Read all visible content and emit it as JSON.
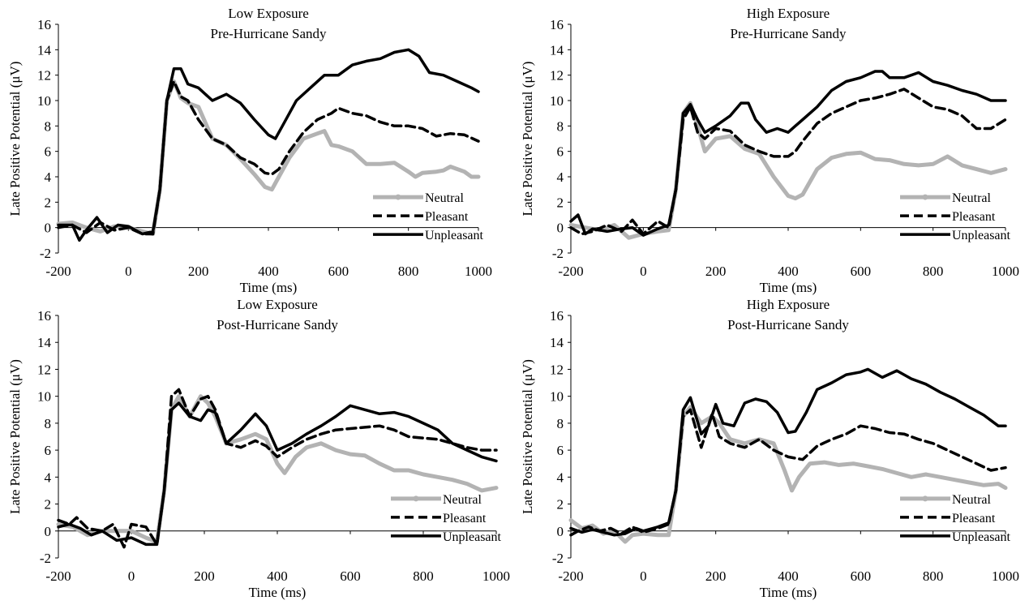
{
  "chart_data": [
    {
      "type": "line",
      "title": "Low Exposure",
      "subtitle": "Pre-Hurricane Sandy",
      "xlabel": "Time (ms)",
      "ylabel": "Late Positive Potential (μV)",
      "xlim": [
        -200,
        1000
      ],
      "ylim": [
        -2,
        16
      ],
      "xticks": [
        -200,
        0,
        200,
        400,
        600,
        800,
        1000
      ],
      "yticks": [
        -2,
        0,
        2,
        4,
        6,
        8,
        10,
        12,
        14,
        16
      ],
      "grid": false,
      "legend": "bottom-right",
      "series": [
        {
          "name": "Neutral",
          "color": "#b3b3b3",
          "style": "solid-thick",
          "x": [
            -200,
            -160,
            -120,
            -80,
            -40,
            0,
            40,
            70,
            90,
            110,
            130,
            150,
            170,
            200,
            240,
            280,
            320,
            360,
            390,
            410,
            430,
            460,
            500,
            540,
            560,
            580,
            600,
            640,
            680,
            720,
            760,
            800,
            820,
            840,
            880,
            900,
            920,
            960,
            980,
            1000
          ],
          "y": [
            0.3,
            0.4,
            0,
            -0.3,
            0.1,
            0,
            -0.3,
            -0.5,
            3,
            10,
            11.5,
            10.2,
            9.8,
            9.5,
            7,
            6.5,
            5.4,
            4.2,
            3.2,
            3.0,
            4.0,
            5.5,
            7.0,
            7.4,
            7.6,
            6.5,
            6.4,
            6.0,
            5.0,
            5.0,
            5.1,
            4.4,
            4.0,
            4.3,
            4.4,
            4.5,
            4.8,
            4.4,
            4.0,
            4.0
          ]
        },
        {
          "name": "Pleasant",
          "color": "#000000",
          "style": "dashed",
          "x": [
            -200,
            -160,
            -120,
            -80,
            -40,
            0,
            40,
            70,
            90,
            110,
            130,
            150,
            170,
            200,
            240,
            280,
            320,
            360,
            390,
            410,
            430,
            460,
            500,
            540,
            580,
            600,
            640,
            680,
            720,
            760,
            800,
            840,
            880,
            920,
            960,
            1000
          ],
          "y": [
            0,
            0.2,
            -0.4,
            0.4,
            -0.2,
            0,
            -0.5,
            -0.5,
            3,
            10,
            11.5,
            10.3,
            10,
            8.5,
            7,
            6.5,
            5.5,
            5.0,
            4.3,
            4.2,
            4.6,
            6.0,
            7.5,
            8.5,
            9.0,
            9.4,
            9.0,
            8.8,
            8.3,
            8.0,
            8.0,
            7.8,
            7.2,
            7.4,
            7.3,
            6.8
          ]
        },
        {
          "name": "Unpleasant",
          "color": "#000000",
          "style": "solid-thick",
          "x": [
            -200,
            -160,
            -140,
            -120,
            -90,
            -60,
            -30,
            0,
            40,
            70,
            90,
            110,
            130,
            150,
            170,
            200,
            240,
            280,
            320,
            360,
            400,
            420,
            440,
            480,
            520,
            560,
            600,
            640,
            680,
            720,
            760,
            800,
            830,
            860,
            900,
            940,
            980,
            1000
          ],
          "y": [
            0.2,
            0.2,
            -1.0,
            -0.2,
            0.8,
            -0.4,
            0.2,
            0.1,
            -0.5,
            -0.3,
            3,
            10,
            12.5,
            12.5,
            11.3,
            11.0,
            10.0,
            10.5,
            9.8,
            8.5,
            7.3,
            7.0,
            8.0,
            10.0,
            11.0,
            12.0,
            12.0,
            12.8,
            13.1,
            13.3,
            13.8,
            14.0,
            13.5,
            12.2,
            12.0,
            11.5,
            11.0,
            10.7
          ]
        }
      ]
    },
    {
      "type": "line",
      "title": "High Exposure",
      "subtitle": "Pre-Hurricane Sandy",
      "xlabel": "Time (ms)",
      "ylabel": "Late Positive Potential (μV)",
      "xlim": [
        -200,
        1000
      ],
      "ylim": [
        -2,
        16
      ],
      "xticks": [
        -200,
        0,
        200,
        400,
        600,
        800,
        1000
      ],
      "yticks": [
        -2,
        0,
        2,
        4,
        6,
        8,
        10,
        12,
        14,
        16
      ],
      "grid": false,
      "legend": "bottom-right",
      "series": [
        {
          "name": "Neutral",
          "color": "#b3b3b3",
          "style": "solid-thick",
          "x": [
            -200,
            -160,
            -120,
            -80,
            -40,
            0,
            40,
            70,
            90,
            110,
            130,
            150,
            170,
            200,
            240,
            280,
            320,
            360,
            400,
            420,
            440,
            480,
            520,
            560,
            600,
            640,
            680,
            720,
            760,
            800,
            840,
            880,
            920,
            960,
            1000
          ],
          "y": [
            0.2,
            0.0,
            -0.2,
            0.2,
            -0.8,
            -0.5,
            -0.3,
            -0.2,
            3,
            9,
            9.8,
            8.0,
            6.0,
            7.0,
            7.2,
            6.2,
            5.8,
            4.0,
            2.5,
            2.3,
            2.6,
            4.6,
            5.5,
            5.8,
            5.9,
            5.4,
            5.3,
            5.0,
            4.9,
            5.0,
            5.6,
            4.9,
            4.6,
            4.3,
            4.6
          ]
        },
        {
          "name": "Pleasant",
          "color": "#000000",
          "style": "dashed",
          "x": [
            -200,
            -170,
            -140,
            -100,
            -60,
            -30,
            0,
            40,
            70,
            90,
            110,
            130,
            150,
            170,
            200,
            240,
            280,
            320,
            360,
            400,
            420,
            440,
            480,
            520,
            560,
            600,
            640,
            680,
            720,
            760,
            800,
            840,
            880,
            920,
            960,
            1000
          ],
          "y": [
            0,
            -0.5,
            -0.3,
            0.2,
            -0.3,
            0.6,
            -0.5,
            0.5,
            0,
            3,
            8.5,
            9.5,
            7.5,
            7.0,
            7.8,
            7.6,
            6.5,
            6.0,
            5.6,
            5.6,
            6.0,
            6.8,
            8.2,
            9.0,
            9.5,
            10.0,
            10.2,
            10.5,
            10.9,
            10.2,
            9.5,
            9.3,
            8.8,
            7.8,
            7.8,
            8.5
          ]
        },
        {
          "name": "Unpleasant",
          "color": "#000000",
          "style": "solid-thick",
          "x": [
            -200,
            -180,
            -160,
            -140,
            -100,
            -60,
            -30,
            0,
            40,
            70,
            90,
            110,
            130,
            150,
            170,
            200,
            240,
            270,
            290,
            310,
            340,
            370,
            400,
            420,
            440,
            480,
            520,
            560,
            600,
            640,
            660,
            680,
            720,
            760,
            800,
            840,
            880,
            920,
            960,
            1000
          ],
          "y": [
            0.5,
            1.0,
            -0.5,
            -0.1,
            -0.3,
            -0.1,
            0.0,
            -0.6,
            -0.1,
            0.2,
            3,
            9,
            9.7,
            8.5,
            7.5,
            8.0,
            8.8,
            9.8,
            9.8,
            8.5,
            7.5,
            7.8,
            7.5,
            8.0,
            8.5,
            9.5,
            10.8,
            11.5,
            11.8,
            12.3,
            12.3,
            11.8,
            11.8,
            12.2,
            11.5,
            11.2,
            10.8,
            10.5,
            10.0,
            10.0
          ]
        }
      ]
    },
    {
      "type": "line",
      "title": "Low Exposure",
      "subtitle": "Post-Hurricane Sandy",
      "xlabel": "Time (ms)",
      "ylabel": "Late Positive Potential (μV)",
      "xlim": [
        -200,
        1000
      ],
      "ylim": [
        -2,
        16
      ],
      "xticks": [
        -200,
        0,
        200,
        400,
        600,
        800,
        1000
      ],
      "yticks": [
        -2,
        0,
        2,
        4,
        6,
        8,
        10,
        12,
        14,
        16
      ],
      "grid": false,
      "legend": "bottom-right",
      "series": [
        {
          "name": "Neutral",
          "color": "#b3b3b3",
          "style": "solid-thick",
          "x": [
            -200,
            -160,
            -120,
            -80,
            -40,
            0,
            40,
            70,
            90,
            110,
            130,
            160,
            190,
            210,
            230,
            260,
            300,
            340,
            370,
            400,
            420,
            450,
            480,
            520,
            560,
            600,
            640,
            680,
            720,
            760,
            800,
            840,
            880,
            920,
            960,
            1000
          ],
          "y": [
            0.5,
            0.3,
            -0.3,
            0,
            0,
            0,
            -0.5,
            -0.8,
            3,
            9,
            10,
            8.5,
            10,
            9.5,
            8.5,
            6.5,
            6.8,
            7.2,
            6.8,
            5.0,
            4.3,
            5.5,
            6.2,
            6.5,
            6.0,
            5.7,
            5.6,
            5.0,
            4.5,
            4.5,
            4.2,
            4.0,
            3.8,
            3.5,
            3.0,
            3.2
          ]
        },
        {
          "name": "Pleasant",
          "color": "#000000",
          "style": "dashed",
          "x": [
            -200,
            -170,
            -150,
            -120,
            -80,
            -50,
            -20,
            0,
            40,
            70,
            90,
            110,
            130,
            160,
            190,
            210,
            230,
            260,
            300,
            340,
            370,
            400,
            440,
            480,
            520,
            560,
            600,
            640,
            680,
            720,
            760,
            800,
            840,
            880,
            920,
            960,
            1000
          ],
          "y": [
            0.8,
            0.5,
            1.0,
            0.2,
            0,
            0.5,
            -1.2,
            0.5,
            0.3,
            -1.0,
            3,
            10,
            10.5,
            8.5,
            9.8,
            10.0,
            9.0,
            6.5,
            6.2,
            6.7,
            6.3,
            5.5,
            6.2,
            6.8,
            7.2,
            7.5,
            7.6,
            7.7,
            7.8,
            7.5,
            7.0,
            6.9,
            6.8,
            6.5,
            6.2,
            6.0,
            6.0
          ]
        },
        {
          "name": "Unpleasant",
          "color": "#000000",
          "style": "solid-thick",
          "x": [
            -200,
            -170,
            -140,
            -110,
            -80,
            -40,
            0,
            40,
            70,
            90,
            110,
            130,
            160,
            190,
            210,
            230,
            260,
            300,
            340,
            370,
            400,
            440,
            480,
            520,
            560,
            600,
            640,
            680,
            720,
            760,
            800,
            840,
            880,
            920,
            960,
            1000
          ],
          "y": [
            0.3,
            0.5,
            0.2,
            -0.3,
            0,
            -0.7,
            -0.5,
            -1.0,
            -1.0,
            3,
            9,
            9.5,
            8.5,
            8.2,
            9.0,
            8.8,
            6.5,
            7.5,
            8.7,
            7.8,
            6.0,
            6.5,
            7.2,
            7.8,
            8.5,
            9.3,
            9.0,
            8.7,
            8.8,
            8.5,
            8.0,
            7.5,
            6.5,
            6.0,
            5.5,
            5.2
          ]
        }
      ]
    },
    {
      "type": "line",
      "title": "High Exposure",
      "subtitle": "Post-Hurricane Sandy",
      "xlabel": "Time (ms)",
      "ylabel": "Late Positive Potential (μV)",
      "xlim": [
        -200,
        1000
      ],
      "ylim": [
        -2,
        16
      ],
      "xticks": [
        -200,
        0,
        200,
        400,
        600,
        800,
        1000
      ],
      "yticks": [
        -2,
        0,
        2,
        4,
        6,
        8,
        10,
        12,
        14,
        16
      ],
      "grid": false,
      "legend": "bottom-right",
      "series": [
        {
          "name": "Neutral",
          "color": "#b3b3b3",
          "style": "solid-thick",
          "x": [
            -200,
            -170,
            -140,
            -110,
            -80,
            -50,
            -30,
            0,
            40,
            70,
            90,
            110,
            130,
            160,
            190,
            210,
            240,
            280,
            320,
            360,
            390,
            410,
            430,
            460,
            500,
            540,
            580,
            620,
            660,
            700,
            740,
            780,
            820,
            860,
            900,
            940,
            980,
            1000
          ],
          "y": [
            0.8,
            0.2,
            0.4,
            -0.2,
            0,
            -0.8,
            -0.3,
            -0.2,
            -0.3,
            -0.3,
            3,
            8.5,
            9.2,
            8.0,
            8.5,
            8.0,
            6.8,
            6.5,
            6.8,
            6.5,
            4.5,
            3.0,
            4.0,
            5.0,
            5.1,
            4.9,
            5.0,
            4.8,
            4.6,
            4.3,
            4.0,
            4.2,
            4.0,
            3.8,
            3.6,
            3.4,
            3.5,
            3.2
          ]
        },
        {
          "name": "Pleasant",
          "color": "#000000",
          "style": "dashed",
          "x": [
            -200,
            -180,
            -150,
            -120,
            -90,
            -60,
            -30,
            0,
            40,
            70,
            90,
            110,
            130,
            160,
            190,
            210,
            240,
            280,
            320,
            360,
            400,
            440,
            480,
            520,
            560,
            600,
            640,
            680,
            720,
            760,
            800,
            840,
            880,
            920,
            960,
            1000
          ],
          "y": [
            -0.3,
            0,
            0.3,
            0,
            0.2,
            -0.2,
            0.3,
            -0.1,
            0.2,
            0.5,
            3,
            8.5,
            9.0,
            6.2,
            8.7,
            7.0,
            6.5,
            6.2,
            6.8,
            6.0,
            5.5,
            5.3,
            6.3,
            6.8,
            7.2,
            7.8,
            7.6,
            7.3,
            7.2,
            6.8,
            6.5,
            6.0,
            5.5,
            5.0,
            4.5,
            4.7
          ]
        },
        {
          "name": "Unpleasant",
          "color": "#000000",
          "style": "solid-thick",
          "x": [
            -200,
            -170,
            -140,
            -110,
            -80,
            -50,
            -20,
            0,
            40,
            70,
            90,
            110,
            130,
            160,
            180,
            200,
            220,
            250,
            280,
            310,
            340,
            370,
            400,
            420,
            450,
            480,
            520,
            560,
            600,
            620,
            660,
            700,
            740,
            780,
            820,
            860,
            900,
            940,
            980,
            1000
          ],
          "y": [
            0.2,
            -0.1,
            0.1,
            -0.1,
            -0.3,
            -0.2,
            0.2,
            0.0,
            0.3,
            0.6,
            3,
            9,
            9.9,
            7.2,
            7.8,
            9.4,
            8.0,
            7.8,
            9.5,
            9.8,
            9.6,
            8.8,
            7.3,
            7.4,
            8.8,
            10.5,
            11.0,
            11.6,
            11.8,
            12.0,
            11.4,
            11.9,
            11.3,
            10.9,
            10.3,
            9.8,
            9.2,
            8.6,
            7.8,
            7.8
          ]
        }
      ]
    }
  ]
}
